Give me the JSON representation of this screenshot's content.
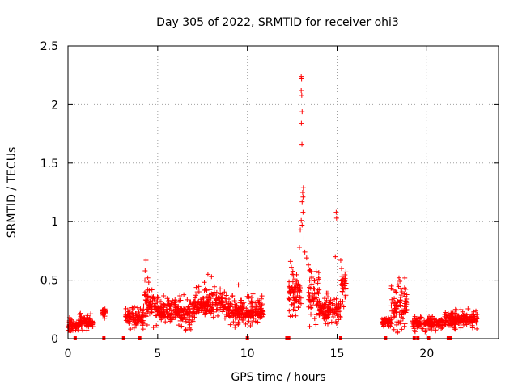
{
  "chart_data": {
    "type": "scatter",
    "title": "Day 305 of 2022, SRMTID for receiver ohi3",
    "xlabel": "GPS time / hours",
    "ylabel": "SRMTID / TECUs",
    "xlim": [
      0,
      24
    ],
    "ylim": [
      0,
      2.5
    ],
    "grid": true,
    "marker": "+",
    "color": "#ff0000",
    "x_ticks": [
      0,
      5,
      10,
      15,
      20
    ],
    "y_ticks": [
      0,
      0.5,
      1,
      1.5,
      2,
      2.5
    ],
    "x_tick_labels": [
      "0",
      "5",
      "10",
      "15",
      "20"
    ],
    "y_tick_labels": [
      "0",
      "0.5",
      "1",
      "1.5",
      "2",
      "2.5"
    ],
    "segments": [
      {
        "start": 0.0,
        "end": 0.6,
        "base": 0.11,
        "spread": 0.07
      },
      {
        "start": 0.6,
        "end": 1.4,
        "base": 0.14,
        "spread": 0.09
      },
      {
        "start": 1.9,
        "end": 2.1,
        "base": 0.22,
        "spread": 0.05
      },
      {
        "start": 3.2,
        "end": 4.2,
        "base": 0.17,
        "spread": 0.12
      },
      {
        "start": 4.2,
        "end": 5.0,
        "base": 0.3,
        "spread": 0.2
      },
      {
        "start": 5.0,
        "end": 7.0,
        "base": 0.22,
        "spread": 0.14
      },
      {
        "start": 7.0,
        "end": 8.8,
        "base": 0.3,
        "spread": 0.16
      },
      {
        "start": 8.8,
        "end": 10.0,
        "base": 0.22,
        "spread": 0.14
      },
      {
        "start": 10.0,
        "end": 10.9,
        "base": 0.23,
        "spread": 0.13
      },
      {
        "start": 12.3,
        "end": 13.0,
        "base": 0.35,
        "spread": 0.28
      },
      {
        "start": 13.4,
        "end": 14.0,
        "base": 0.36,
        "spread": 0.25
      },
      {
        "start": 14.0,
        "end": 15.2,
        "base": 0.24,
        "spread": 0.15
      },
      {
        "start": 15.2,
        "end": 15.5,
        "base": 0.45,
        "spread": 0.18
      },
      {
        "start": 17.5,
        "end": 18.0,
        "base": 0.14,
        "spread": 0.05
      },
      {
        "start": 18.0,
        "end": 18.9,
        "base": 0.25,
        "spread": 0.25
      },
      {
        "start": 19.2,
        "end": 21.0,
        "base": 0.13,
        "spread": 0.07
      },
      {
        "start": 21.0,
        "end": 22.8,
        "base": 0.16,
        "spread": 0.08
      }
    ],
    "peaks": [
      {
        "x": 4.35,
        "y": 0.67
      },
      {
        "x": 4.3,
        "y": 0.58
      },
      {
        "x": 4.45,
        "y": 0.52
      },
      {
        "x": 7.8,
        "y": 0.55
      },
      {
        "x": 8.0,
        "y": 0.53
      },
      {
        "x": 9.5,
        "y": 0.46
      },
      {
        "x": 12.4,
        "y": 0.66
      },
      {
        "x": 12.45,
        "y": 0.61
      },
      {
        "x": 12.5,
        "y": 0.55
      },
      {
        "x": 12.9,
        "y": 0.78
      },
      {
        "x": 12.95,
        "y": 0.93
      },
      {
        "x": 13.0,
        "y": 1.01
      },
      {
        "x": 13.05,
        "y": 0.97
      },
      {
        "x": 13.1,
        "y": 1.08
      },
      {
        "x": 13.05,
        "y": 1.17
      },
      {
        "x": 13.1,
        "y": 1.21
      },
      {
        "x": 13.08,
        "y": 1.25
      },
      {
        "x": 13.12,
        "y": 1.29
      },
      {
        "x": 13.0,
        "y": 2.24
      },
      {
        "x": 13.02,
        "y": 2.22
      },
      {
        "x": 13.0,
        "y": 2.12
      },
      {
        "x": 13.03,
        "y": 2.08
      },
      {
        "x": 13.05,
        "y": 1.94
      },
      {
        "x": 13.01,
        "y": 1.84
      },
      {
        "x": 13.04,
        "y": 1.66
      },
      {
        "x": 13.2,
        "y": 0.74
      },
      {
        "x": 13.3,
        "y": 0.69
      },
      {
        "x": 13.4,
        "y": 0.63
      },
      {
        "x": 13.5,
        "y": 0.58
      },
      {
        "x": 13.15,
        "y": 0.86
      },
      {
        "x": 14.95,
        "y": 1.08
      },
      {
        "x": 14.97,
        "y": 1.03
      },
      {
        "x": 14.9,
        "y": 0.7
      },
      {
        "x": 15.2,
        "y": 0.67
      },
      {
        "x": 15.25,
        "y": 0.6
      },
      {
        "x": 18.45,
        "y": 0.52
      },
      {
        "x": 18.5,
        "y": 0.49
      },
      {
        "x": 18.4,
        "y": 0.46
      },
      {
        "x": 18.55,
        "y": 0.43
      },
      {
        "x": 21.6,
        "y": 0.25
      },
      {
        "x": 22.0,
        "y": 0.23
      }
    ],
    "zero_points": [
      0.4,
      2.0,
      3.1,
      4.0,
      10.0,
      12.2,
      12.3,
      15.2,
      17.7,
      19.3,
      19.5,
      20.1,
      21.2,
      21.3
    ]
  }
}
